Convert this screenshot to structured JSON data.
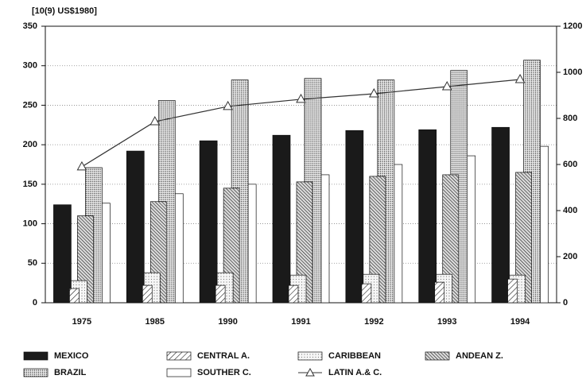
{
  "chart_data": {
    "type": "bar",
    "title": "[10(9) US$1980]",
    "categories": [
      "1975",
      "1985",
      "1990",
      "1991",
      "1992",
      "1993",
      "1994"
    ],
    "series": [
      {
        "name": "MEXICO",
        "color": "#1a1a1a",
        "pattern": "solid",
        "values": [
          124,
          192,
          205,
          212,
          218,
          219,
          222
        ]
      },
      {
        "name": "CENTRAL A.",
        "color": "#333333",
        "pattern": "hatch",
        "values": [
          18,
          22,
          22,
          22,
          24,
          26,
          30
        ]
      },
      {
        "name": "CARIBBEAN",
        "color": "#999999",
        "pattern": "light-dots",
        "values": [
          28,
          38,
          38,
          35,
          36,
          36,
          35
        ]
      },
      {
        "name": "ANDEAN Z.",
        "color": "#222222",
        "pattern": "dense-hatch",
        "values": [
          110,
          128,
          145,
          153,
          160,
          162,
          165
        ]
      },
      {
        "name": "BRAZIL",
        "color": "#666666",
        "pattern": "dots",
        "values": [
          171,
          256,
          282,
          284,
          282,
          294,
          307
        ]
      },
      {
        "name": "SOUTHER C.",
        "color": "#ffffff",
        "pattern": "solid",
        "values": [
          126,
          138,
          150,
          162,
          175,
          186,
          198
        ]
      },
      {
        "name": "LATIN A.& C.",
        "color": "#333333",
        "type": "line",
        "axis": "y2",
        "values": [
          590,
          786,
          852,
          883,
          907,
          938,
          969
        ]
      }
    ],
    "ylim": [
      0,
      350
    ],
    "yticks": [
      0,
      50,
      100,
      150,
      200,
      250,
      300,
      350
    ],
    "y2lim": [
      0,
      1200
    ],
    "y2ticks": [
      0,
      200,
      400,
      600,
      800,
      1000,
      1200
    ],
    "grid": true
  }
}
